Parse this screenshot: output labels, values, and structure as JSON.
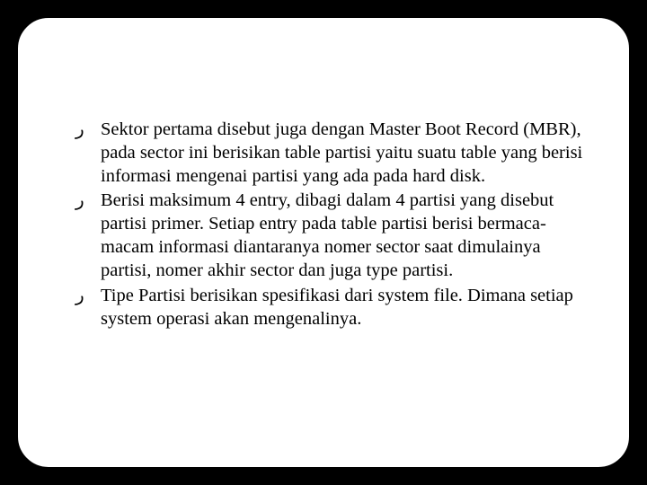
{
  "slide": {
    "background_color": "#000000",
    "frame_background": "#ffffff",
    "frame_border_color": "#000000",
    "frame_border_radius": 36,
    "bullet_glyph": "ر",
    "text_color": "#000000",
    "font_family": "Georgia, Times New Roman, serif",
    "font_size_pt": 15,
    "bullets": [
      "Sektor pertama disebut juga dengan Master Boot Record (MBR), pada sector ini berisikan table partisi yaitu suatu table yang berisi informasi mengenai partisi yang ada pada hard disk.",
      "Berisi maksimum 4 entry, dibagi dalam 4 partisi yang disebut partisi primer. Setiap entry pada table partisi berisi bermaca-macam informasi diantaranya nomer sector saat dimulainya partisi, nomer akhir sector dan juga type partisi.",
      "Tipe Partisi berisikan spesifikasi dari system file. Dimana setiap system operasi akan mengenalinya."
    ]
  }
}
